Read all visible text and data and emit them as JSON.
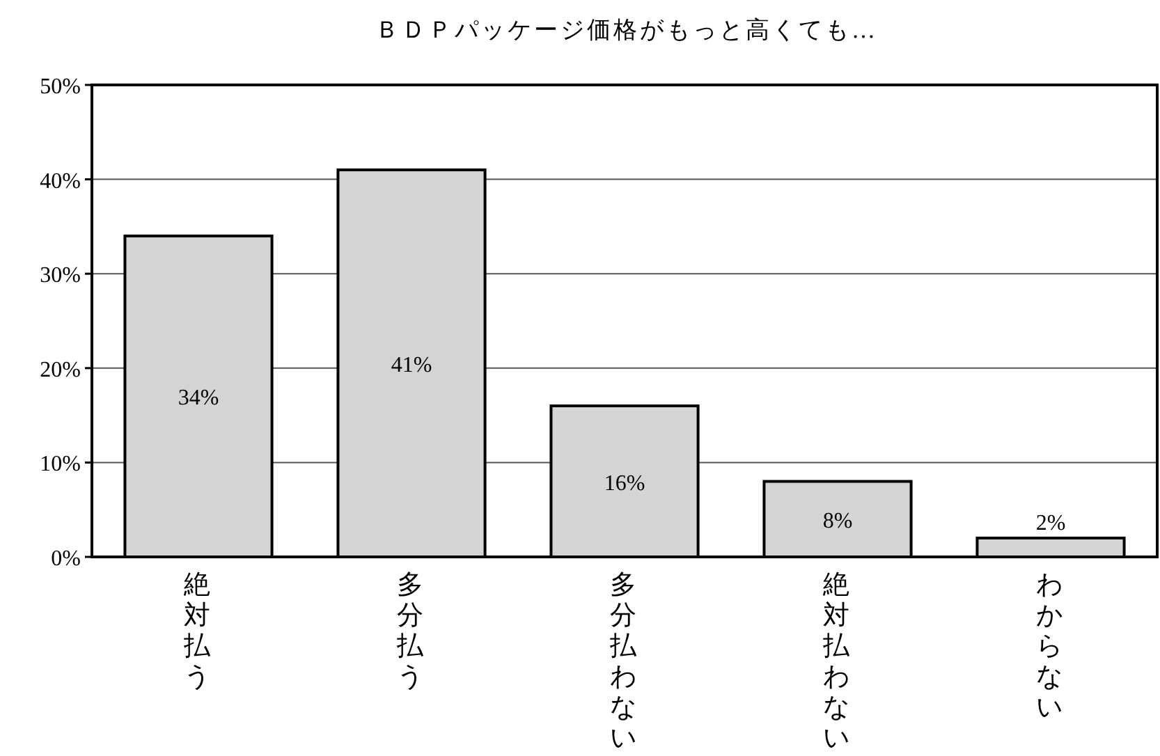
{
  "chart_data": {
    "type": "bar",
    "title": "ＢＤＰパッケージ価格がもっと高くても…",
    "categories": [
      "絶対払う",
      "多分払う",
      "多分払わない",
      "絶対払わない",
      "わからない"
    ],
    "values": [
      34,
      41,
      16,
      8,
      2
    ],
    "color": "#d4d4d4",
    "ylim": [
      0,
      50
    ],
    "yticks": [
      {
        "value": 0,
        "label": "0%"
      },
      {
        "value": 10,
        "label": "10%"
      },
      {
        "value": 20,
        "label": "20%"
      },
      {
        "value": 30,
        "label": "30%"
      },
      {
        "value": 40,
        "label": "40%"
      },
      {
        "value": 50,
        "label": "50%"
      }
    ],
    "value_labels": [
      "34%",
      "41%",
      "16%",
      "8%",
      "2%"
    ],
    "grid": "y"
  }
}
